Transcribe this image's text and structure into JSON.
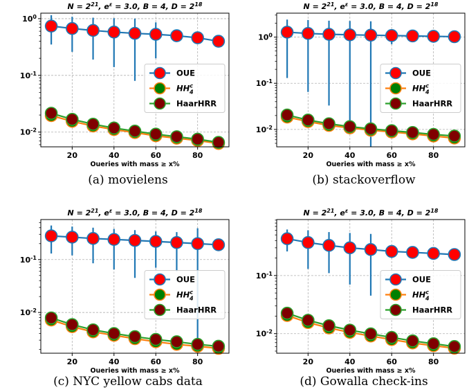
{
  "chart_data": [
    {
      "type": "line",
      "title": "N = 2^21, e^ε = 3.0, B = 4, D = 2^18",
      "caption": "(a)  movielens",
      "xlabel": "Oueries with mass ≥  x%",
      "yscale": "log",
      "xlim": [
        5,
        95
      ],
      "ylim": [
        0.0055,
        1.25
      ],
      "xticks": [
        20,
        40,
        60,
        80
      ],
      "yticks": [
        {
          "v": 1,
          "b": "10",
          "e": "0"
        },
        {
          "v": 0.1,
          "b": "10",
          "e": "-1"
        },
        {
          "v": 0.01,
          "b": "10",
          "e": "-2"
        }
      ],
      "grid": true,
      "legend": "center-right",
      "x": [
        10,
        20,
        30,
        40,
        50,
        60,
        70,
        80,
        90
      ],
      "series": [
        {
          "name": "OUE",
          "color": "#1f77b4",
          "marker": "#ff0000",
          "values": [
            0.74,
            0.67,
            0.62,
            0.58,
            0.55,
            0.53,
            0.5,
            0.46,
            0.4
          ],
          "err_low": [
            0.35,
            0.26,
            0.19,
            0.14,
            0.08,
            0.2,
            0.45,
            0.42,
            0.37
          ],
          "err_high": [
            1.15,
            1.08,
            1.04,
            1.02,
            1.0,
            0.86,
            0.55,
            0.5,
            0.43
          ]
        },
        {
          "name": "HH_4^c",
          "color": "#ff7f0e",
          "marker": "#008000",
          "values": [
            0.0195,
            0.0155,
            0.0128,
            0.0111,
            0.0098,
            0.0086,
            0.0078,
            0.0071,
            0.0063
          ]
        },
        {
          "name": "HaarHRR",
          "color": "#2ca02c",
          "marker": "#800000",
          "values": [
            0.0215,
            0.0168,
            0.0138,
            0.0118,
            0.0104,
            0.0092,
            0.0083,
            0.0075,
            0.0066
          ]
        }
      ]
    },
    {
      "type": "line",
      "title": "N = 2^21, e^ε = 3.0, B = 4, D = 2^18",
      "caption": "(b)  stackoverflow",
      "xlabel": "Oueries with mass ≥  x%",
      "yscale": "log",
      "xlim": [
        5,
        95
      ],
      "ylim": [
        0.0042,
        3.3
      ],
      "xticks": [
        20,
        40,
        60,
        80
      ],
      "yticks": [
        {
          "v": 1,
          "b": "10",
          "e": "0"
        },
        {
          "v": 0.1,
          "b": "10",
          "e": "-1"
        },
        {
          "v": 0.01,
          "b": "10",
          "e": "-2"
        }
      ],
      "grid": true,
      "legend": "center-right",
      "x": [
        10,
        20,
        30,
        40,
        50,
        60,
        70,
        80,
        90
      ],
      "series": [
        {
          "name": "OUE",
          "color": "#1f77b4",
          "marker": "#ff0000",
          "values": [
            1.28,
            1.2,
            1.15,
            1.12,
            1.1,
            1.08,
            1.06,
            1.04,
            1.02
          ],
          "err_low": [
            0.13,
            0.065,
            0.033,
            0.009,
            0.0042,
            0.7,
            0.9,
            0.92,
            0.93
          ],
          "err_high": [
            2.4,
            2.35,
            2.27,
            2.24,
            2.2,
            1.46,
            1.22,
            1.16,
            1.1
          ]
        },
        {
          "name": "HH_4^c",
          "color": "#ff7f0e",
          "marker": "#008000",
          "values": [
            0.0185,
            0.0148,
            0.0122,
            0.0108,
            0.0096,
            0.0088,
            0.008,
            0.0072,
            0.0065
          ]
        },
        {
          "name": "HaarHRR",
          "color": "#2ca02c",
          "marker": "#800000",
          "values": [
            0.0205,
            0.016,
            0.0133,
            0.0115,
            0.0103,
            0.0094,
            0.0086,
            0.0078,
            0.0072
          ]
        }
      ]
    },
    {
      "type": "line",
      "title": "N = 2^21, e^ε = 3.0, B = 4, D = 2^18",
      "caption": "(c)  NYC yellow cabs data",
      "xlabel": "Oueries with mass ≥  x%",
      "yscale": "log",
      "xlim": [
        5,
        95
      ],
      "ylim": [
        0.0017,
        0.57
      ],
      "xticks": [
        20,
        40,
        60,
        80
      ],
      "yticks": [
        {
          "v": 0.1,
          "b": "10",
          "e": "-1"
        },
        {
          "v": 0.01,
          "b": "10",
          "e": "-2"
        }
      ],
      "grid": true,
      "legend": "center-right",
      "x": [
        10,
        20,
        30,
        40,
        50,
        60,
        70,
        80,
        90
      ],
      "series": [
        {
          "name": "OUE",
          "color": "#1f77b4",
          "marker": "#ff0000",
          "values": [
            0.28,
            0.265,
            0.25,
            0.24,
            0.23,
            0.22,
            0.21,
            0.2,
            0.19
          ],
          "err_low": [
            0.13,
            0.12,
            0.085,
            0.065,
            0.045,
            0.07,
            0.06,
            0.0017,
            0.17
          ],
          "err_high": [
            0.44,
            0.42,
            0.4,
            0.38,
            0.36,
            0.34,
            0.33,
            0.39,
            0.21
          ]
        },
        {
          "name": "HH_4^c",
          "color": "#ff7f0e",
          "marker": "#008000",
          "values": [
            0.0072,
            0.0054,
            0.0043,
            0.0037,
            0.0032,
            0.0028,
            0.0025,
            0.0023,
            0.0021
          ]
        },
        {
          "name": "HaarHRR",
          "color": "#2ca02c",
          "marker": "#800000",
          "values": [
            0.0079,
            0.0059,
            0.0047,
            0.004,
            0.0035,
            0.0031,
            0.0028,
            0.0025,
            0.0023
          ]
        }
      ]
    },
    {
      "type": "line",
      "title": "N = 2^21, e^ε = 3.0, B = 4, D = 2^18",
      "caption": "(d)  Gowalla check-ins",
      "xlabel": "Oueries with mass ≥  x%",
      "yscale": "log",
      "xlim": [
        5,
        95
      ],
      "ylim": [
        0.0046,
        0.92
      ],
      "xticks": [
        20,
        40,
        60,
        80
      ],
      "yticks": [
        {
          "v": 0.1,
          "b": "10",
          "e": "-1"
        },
        {
          "v": 0.01,
          "b": "10",
          "e": "-2"
        }
      ],
      "grid": true,
      "legend": "center-right",
      "x": [
        10,
        20,
        30,
        40,
        50,
        60,
        70,
        80,
        90
      ],
      "series": [
        {
          "name": "OUE",
          "color": "#1f77b4",
          "marker": "#ff0000",
          "values": [
            0.43,
            0.37,
            0.33,
            0.3,
            0.28,
            0.26,
            0.25,
            0.24,
            0.23
          ],
          "err_low": [
            0.26,
            0.13,
            0.11,
            0.07,
            0.045,
            0.2,
            0.22,
            0.22,
            0.22
          ],
          "err_high": [
            0.62,
            0.6,
            0.56,
            0.54,
            0.52,
            0.32,
            0.28,
            0.26,
            0.25
          ]
        },
        {
          "name": "HH_4^c",
          "color": "#ff7f0e",
          "marker": "#008000",
          "values": [
            0.0205,
            0.0155,
            0.0125,
            0.0105,
            0.0091,
            0.0079,
            0.0069,
            0.0062,
            0.0056
          ]
        },
        {
          "name": "HaarHRR",
          "color": "#2ca02c",
          "marker": "#800000",
          "values": [
            0.0225,
            0.017,
            0.0137,
            0.0115,
            0.0099,
            0.0086,
            0.0075,
            0.0067,
            0.006
          ]
        }
      ]
    }
  ]
}
